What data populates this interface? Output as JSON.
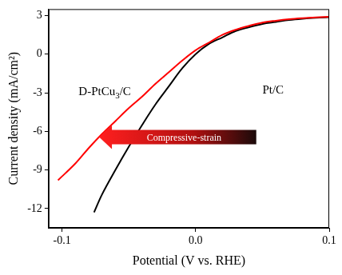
{
  "chart_data": {
    "type": "line",
    "x_label": "Potential (V vs. RHE)",
    "y_label": "Current density (mA/cm²)",
    "xlim": [
      -0.11,
      0.1
    ],
    "xticks": [
      -0.1,
      {
        "value": 0,
        "label": "0.0"
      },
      0.1
    ],
    "ylim": [
      -13.5,
      3.5
    ],
    "yticks": [
      -12,
      -9,
      -6,
      -3,
      0,
      3
    ],
    "grid": false,
    "annotations": [
      "Compressive-strain"
    ],
    "series": [
      {
        "name": "D-PtCu3/C",
        "color": "#ff0000",
        "x": [
          -0.103,
          -0.09,
          -0.08,
          -0.07,
          -0.06,
          -0.05,
          -0.04,
          -0.03,
          -0.02,
          -0.01,
          0.0,
          0.01,
          0.02,
          0.03,
          0.04,
          0.05,
          0.06,
          0.07,
          0.08,
          0.09,
          0.1
        ],
        "values": [
          -9.8,
          -8.5,
          -7.3,
          -6.2,
          -5.2,
          -4.2,
          -3.3,
          -2.3,
          -1.4,
          -0.5,
          0.3,
          0.9,
          1.5,
          1.9,
          2.2,
          2.45,
          2.6,
          2.72,
          2.8,
          2.86,
          2.9
        ]
      },
      {
        "name": "Pt/C",
        "color": "#000000",
        "x": [
          -0.076,
          -0.07,
          -0.06,
          -0.05,
          -0.04,
          -0.03,
          -0.02,
          -0.01,
          0.0,
          0.01,
          0.02,
          0.03,
          0.04,
          0.05,
          0.06,
          0.07,
          0.08,
          0.09,
          0.1
        ],
        "values": [
          -12.3,
          -10.9,
          -9.0,
          -7.2,
          -5.5,
          -3.9,
          -2.5,
          -1.1,
          0.0,
          0.8,
          1.3,
          1.8,
          2.1,
          2.35,
          2.5,
          2.65,
          2.75,
          2.82,
          2.87
        ]
      }
    ]
  }
}
